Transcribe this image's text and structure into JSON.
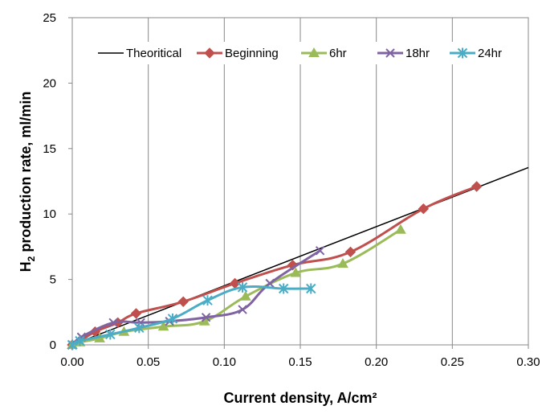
{
  "chart_data": {
    "type": "line",
    "title": "",
    "xlabel": "Current density, A/cm²",
    "ylabel_main": "H",
    "ylabel_sub": "2",
    "ylabel_rest": " production rate,  ml/min",
    "xlim": [
      0,
      0.3
    ],
    "ylim": [
      0,
      25
    ],
    "x_ticks": [
      0,
      0.05,
      0.1,
      0.15,
      0.2,
      0.25,
      0.3
    ],
    "x_tick_labels": [
      "0.00",
      "0.05",
      "0.10",
      "0.15",
      "0.20",
      "0.25",
      "0.30"
    ],
    "y_ticks": [
      0,
      5,
      10,
      15,
      20,
      25
    ],
    "y_tick_labels": [
      "0",
      "5",
      "10",
      "15",
      "20",
      "25"
    ],
    "legend_position": "top",
    "grid": "vertical",
    "series": [
      {
        "name": "Theoritical",
        "color": "#000000",
        "marker": "none",
        "x": [
          0,
          0.3
        ],
        "y": [
          0,
          13.55
        ]
      },
      {
        "name": "Beginning",
        "color": "#C0504D",
        "marker": "diamond",
        "x": [
          0,
          0.005,
          0.015,
          0.03,
          0.042,
          0.073,
          0.107,
          0.145,
          0.183,
          0.231,
          0.266
        ],
        "y": [
          0,
          0.3,
          1.0,
          1.7,
          2.4,
          3.3,
          4.7,
          6.1,
          7.1,
          10.4,
          12.1
        ]
      },
      {
        "name": "6hr",
        "color": "#9BBB59",
        "marker": "triangle",
        "x": [
          0,
          0.005,
          0.018,
          0.034,
          0.06,
          0.087,
          0.114,
          0.147,
          0.178,
          0.216
        ],
        "y": [
          0,
          0.2,
          0.5,
          1.0,
          1.4,
          1.8,
          3.7,
          5.5,
          6.2,
          8.8
        ]
      },
      {
        "name": "18hr",
        "color": "#8064A2",
        "marker": "x",
        "x": [
          0,
          0.006,
          0.027,
          0.045,
          0.064,
          0.088,
          0.112,
          0.13,
          0.163
        ],
        "y": [
          0,
          0.6,
          1.7,
          1.7,
          1.8,
          2.1,
          2.7,
          4.7,
          7.2
        ]
      },
      {
        "name": "24hr",
        "color": "#4BACC6",
        "marker": "star",
        "x": [
          0,
          0.005,
          0.025,
          0.044,
          0.066,
          0.089,
          0.112,
          0.139,
          0.157
        ],
        "y": [
          0,
          0.3,
          0.8,
          1.3,
          2.0,
          3.4,
          4.4,
          4.3,
          4.3
        ]
      }
    ]
  }
}
